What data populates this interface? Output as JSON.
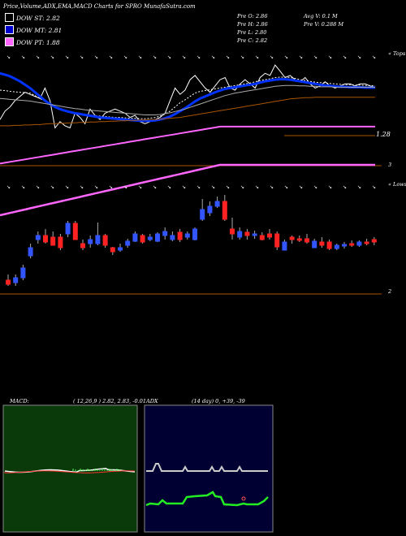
{
  "header": {
    "title": "Price,Volume,ADX,EMA,MACD Charts for SPRO MunafaSutra.com"
  },
  "legend": [
    {
      "label": "DOW ST: 2.82",
      "color": "#ffffff"
    },
    {
      "label": "DOW MT: 2.81",
      "color": "#0000cc"
    },
    {
      "label": "DOW PT: 1.88",
      "color": "#ff66ff"
    }
  ],
  "stats": {
    "open": "Pre   O: 2.86",
    "high": "Pre   H: 2.86",
    "low": "Pre   L: 2.80",
    "close": "Pre   C: 2.82",
    "avg_vol": "Avg V: 0.1   M",
    "prev_vol": "Pre   V: 0.288   M"
  },
  "ema_panel": {
    "corner_label": "« Tops",
    "price_label": "1.28",
    "axis_label": "3"
  },
  "price_panel": {
    "corner_label": "« Lows",
    "axis_label": "2"
  },
  "macd": {
    "label": "MACD:",
    "values": "( 12,26,9 ) 2.82,  2.83,  -0.01",
    "bg": "#0a3a0a"
  },
  "adx": {
    "label": "ADX",
    "values": "(14  day) 0,  +39,  -39",
    "bg": "#000033"
  },
  "chart_data": [
    {
      "type": "line",
      "name": "ema-panel",
      "x": [
        0,
        1,
        2,
        3,
        4,
        5,
        6,
        7,
        8,
        9,
        10,
        11,
        12,
        13,
        14,
        15,
        16,
        17,
        18,
        19,
        20,
        21,
        22,
        23,
        24,
        25,
        26,
        27,
        28,
        29,
        30,
        31,
        32,
        33,
        34,
        35,
        36,
        37,
        38,
        39,
        40,
        41,
        42,
        43,
        44,
        45,
        46,
        47,
        48,
        49,
        50,
        51,
        52,
        53,
        54,
        55,
        56,
        57,
        58,
        59,
        60,
        61,
        62,
        63,
        64,
        65,
        66,
        67,
        68,
        69,
        70,
        71,
        72,
        73,
        74,
        75
      ],
      "series": [
        {
          "role": "close",
          "color": "#ffffff",
          "values": [
            2.05,
            2.25,
            2.35,
            2.5,
            2.6,
            2.7,
            2.65,
            2.6,
            2.55,
            2.8,
            2.5,
            1.85,
            2.0,
            1.9,
            1.85,
            2.2,
            2.1,
            1.95,
            2.3,
            2.15,
            2.05,
            2.2,
            2.25,
            2.3,
            2.25,
            2.2,
            2.1,
            2.15,
            2.0,
            1.95,
            2.0,
            2.05,
            2.1,
            2.2,
            2.5,
            2.8,
            2.65,
            2.75,
            3.0,
            3.1,
            2.95,
            2.8,
            2.7,
            2.85,
            3.0,
            3.05,
            2.8,
            2.75,
            2.9,
            3.0,
            2.9,
            2.8,
            3.05,
            3.15,
            3.1,
            3.35,
            3.2,
            3.05,
            3.1,
            3.0,
            2.95,
            3.05,
            2.9,
            2.8,
            2.85,
            2.95,
            2.85,
            2.8,
            2.85,
            2.9,
            2.9,
            2.85,
            2.9,
            2.9,
            2.85,
            2.82
          ]
        },
        {
          "role": "ema-short",
          "color": "#ffffff",
          "values": [
            2.75,
            2.74,
            2.72,
            2.71,
            2.7,
            2.69,
            2.68,
            2.62,
            2.55,
            2.48,
            2.4,
            2.33,
            2.28,
            2.25,
            2.22,
            2.2,
            2.18,
            2.16,
            2.15,
            2.14,
            2.13,
            2.12,
            2.11,
            2.1,
            2.1,
            2.09,
            2.08,
            2.08,
            2.07,
            2.07,
            2.08,
            2.1,
            2.13,
            2.18,
            2.25,
            2.35,
            2.45,
            2.52,
            2.6,
            2.68,
            2.72,
            2.74,
            2.76,
            2.78,
            2.8,
            2.82,
            2.84,
            2.86,
            2.88,
            2.9,
            2.92,
            2.95,
            2.98,
            3.0,
            3.02,
            3.05,
            3.06,
            3.06,
            3.05,
            3.03,
            3.0,
            2.98,
            2.96,
            2.94,
            2.93,
            2.92,
            2.91,
            2.9,
            2.89,
            2.88,
            2.88,
            2.87,
            2.87,
            2.86,
            2.86,
            2.85
          ]
        },
        {
          "role": "ema-mid",
          "color": "#0033ff",
          "values": [
            3.15,
            3.12,
            3.08,
            3.02,
            2.96,
            2.88,
            2.8,
            2.7,
            2.6,
            2.5,
            2.42,
            2.35,
            2.3,
            2.26,
            2.23,
            2.2,
            2.18,
            2.16,
            2.14,
            2.12,
            2.1,
            2.09,
            2.08,
            2.07,
            2.06,
            2.05,
            2.04,
            2.03,
            2.02,
            2.02,
            2.02,
            2.03,
            2.05,
            2.08,
            2.12,
            2.18,
            2.25,
            2.32,
            2.4,
            2.48,
            2.55,
            2.6,
            2.65,
            2.7,
            2.74,
            2.78,
            2.8,
            2.82,
            2.84,
            2.86,
            2.88,
            2.9,
            2.93,
            2.96,
            2.98,
            3.0,
            3.01,
            3.01,
            3.0,
            2.98,
            2.96,
            2.94,
            2.92,
            2.9,
            2.88,
            2.86,
            2.85,
            2.84,
            2.83,
            2.83,
            2.82,
            2.82,
            2.82,
            2.81,
            2.81,
            2.81
          ]
        },
        {
          "role": "ema-long",
          "color": "#aaaaaa",
          "values": [
            2.55,
            2.54,
            2.53,
            2.52,
            2.51,
            2.5,
            2.49,
            2.47,
            2.45,
            2.43,
            2.41,
            2.39,
            2.37,
            2.35,
            2.33,
            2.31,
            2.3,
            2.28,
            2.27,
            2.26,
            2.25,
            2.24,
            2.23,
            2.22,
            2.21,
            2.2,
            2.19,
            2.18,
            2.17,
            2.16,
            2.16,
            2.16,
            2.17,
            2.19,
            2.21,
            2.24,
            2.27,
            2.3,
            2.34,
            2.38,
            2.42,
            2.46,
            2.5,
            2.54,
            2.58,
            2.62,
            2.65,
            2.68,
            2.7,
            2.72,
            2.74,
            2.76,
            2.78,
            2.8,
            2.82,
            2.84,
            2.85,
            2.86,
            2.86,
            2.86,
            2.85,
            2.85,
            2.84,
            2.84,
            2.83,
            2.83,
            2.83,
            2.82,
            2.82,
            2.82,
            2.82,
            2.82,
            2.82,
            2.82,
            2.82,
            2.82
          ]
        },
        {
          "role": "ema-vlong",
          "color": "#aa5500",
          "values": [
            1.9,
            1.9,
            1.9,
            1.91,
            1.91,
            1.92,
            1.92,
            1.93,
            1.93,
            1.94,
            1.95,
            1.95,
            1.96,
            1.96,
            1.97,
            1.97,
            1.98,
            1.98,
            1.99,
            1.99,
            2.0,
            2.0,
            2.01,
            2.01,
            2.02,
            2.02,
            2.03,
            2.03,
            2.04,
            2.04,
            2.05,
            2.05,
            2.06,
            2.07,
            2.08,
            2.09,
            2.1,
            2.12,
            2.14,
            2.16,
            2.18,
            2.2,
            2.22,
            2.24,
            2.26,
            2.28,
            2.3,
            2.32,
            2.34,
            2.36,
            2.38,
            2.4,
            2.42,
            2.44,
            2.46,
            2.48,
            2.5,
            2.52,
            2.54,
            2.55,
            2.56,
            2.57,
            2.57,
            2.58,
            2.58,
            2.58,
            2.58,
            2.58,
            2.58,
            2.58,
            2.58,
            2.58,
            2.58,
            2.58,
            2.58,
            2.58
          ]
        },
        {
          "role": "pt-line",
          "color": "#ff66ff",
          "values": [
            1.0,
            1.02,
            1.04,
            1.06,
            1.08,
            1.1,
            1.12,
            1.14,
            1.16,
            1.18,
            1.2,
            1.22,
            1.24,
            1.26,
            1.28,
            1.3,
            1.32,
            1.34,
            1.36,
            1.38,
            1.4,
            1.42,
            1.44,
            1.46,
            1.48,
            1.5,
            1.52,
            1.54,
            1.56,
            1.58,
            1.6,
            1.62,
            1.64,
            1.66,
            1.68,
            1.7,
            1.72,
            1.74,
            1.76,
            1.78,
            1.8,
            1.82,
            1.84,
            1.86,
            1.88,
            1.88,
            1.88,
            1.88,
            1.88,
            1.88,
            1.88,
            1.88,
            1.88,
            1.88,
            1.88,
            1.88,
            1.88,
            1.88,
            1.88,
            1.88,
            1.88,
            1.88,
            1.88,
            1.88,
            1.88,
            1.88,
            1.88,
            1.88,
            1.88,
            1.88,
            1.88,
            1.88,
            1.88,
            1.88,
            1.88,
            1.88
          ]
        }
      ]
    },
    {
      "type": "candlestick",
      "name": "price-panel",
      "candles": [
        {
          "o": 1.55,
          "h": 1.62,
          "l": 1.48,
          "c": 1.5
        },
        {
          "o": 1.52,
          "h": 1.62,
          "l": 1.48,
          "c": 1.58
        },
        {
          "o": 1.58,
          "h": 1.74,
          "l": 1.55,
          "c": 1.7
        },
        {
          "o": 1.85,
          "h": 2.0,
          "l": 1.82,
          "c": 1.95
        },
        {
          "o": 2.05,
          "h": 2.15,
          "l": 2.0,
          "c": 2.1
        },
        {
          "o": 2.1,
          "h": 2.18,
          "l": 2.0,
          "c": 2.02
        },
        {
          "o": 2.08,
          "h": 2.15,
          "l": 1.98,
          "c": 1.98
        },
        {
          "o": 2.08,
          "h": 2.12,
          "l": 1.92,
          "c": 1.95
        },
        {
          "o": 2.12,
          "h": 2.28,
          "l": 2.08,
          "c": 2.25
        },
        {
          "o": 2.25,
          "h": 2.28,
          "l": 2.05,
          "c": 2.05
        },
        {
          "o": 2.0,
          "h": 2.05,
          "l": 1.92,
          "c": 1.95
        },
        {
          "o": 2.0,
          "h": 2.1,
          "l": 1.95,
          "c": 2.05
        },
        {
          "o": 2.0,
          "h": 2.26,
          "l": 1.98,
          "c": 2.1
        },
        {
          "o": 2.1,
          "h": 2.12,
          "l": 1.95,
          "c": 1.98
        },
        {
          "o": 1.95,
          "h": 1.96,
          "l": 1.86,
          "c": 1.9
        },
        {
          "o": 1.92,
          "h": 2.0,
          "l": 1.9,
          "c": 1.95
        },
        {
          "o": 1.98,
          "h": 2.06,
          "l": 1.95,
          "c": 2.03
        },
        {
          "o": 2.03,
          "h": 2.15,
          "l": 2.02,
          "c": 2.12
        },
        {
          "o": 2.1,
          "h": 2.12,
          "l": 2.0,
          "c": 2.02
        },
        {
          "o": 2.05,
          "h": 2.12,
          "l": 2.03,
          "c": 2.08
        },
        {
          "o": 2.03,
          "h": 2.14,
          "l": 2.02,
          "c": 2.12
        },
        {
          "o": 2.1,
          "h": 2.2,
          "l": 2.05,
          "c": 2.15
        },
        {
          "o": 2.05,
          "h": 2.15,
          "l": 2.03,
          "c": 2.1
        },
        {
          "o": 2.14,
          "h": 2.18,
          "l": 2.02,
          "c": 2.05
        },
        {
          "o": 2.08,
          "h": 2.15,
          "l": 2.05,
          "c": 2.12
        },
        {
          "o": 2.05,
          "h": 2.2,
          "l": 2.04,
          "c": 2.18
        },
        {
          "o": 2.3,
          "h": 2.55,
          "l": 2.28,
          "c": 2.42
        },
        {
          "o": 2.38,
          "h": 2.52,
          "l": 2.34,
          "c": 2.46
        },
        {
          "o": 2.46,
          "h": 2.58,
          "l": 2.44,
          "c": 2.52
        },
        {
          "o": 2.52,
          "h": 2.6,
          "l": 2.28,
          "c": 2.3
        },
        {
          "o": 2.18,
          "h": 2.32,
          "l": 2.05,
          "c": 2.12
        },
        {
          "o": 2.08,
          "h": 2.2,
          "l": 2.05,
          "c": 2.15
        },
        {
          "o": 2.14,
          "h": 2.18,
          "l": 2.05,
          "c": 2.1
        },
        {
          "o": 2.1,
          "h": 2.16,
          "l": 2.06,
          "c": 2.12
        },
        {
          "o": 2.1,
          "h": 2.14,
          "l": 2.04,
          "c": 2.05
        },
        {
          "o": 2.12,
          "h": 2.18,
          "l": 2.05,
          "c": 2.08
        },
        {
          "o": 2.12,
          "h": 2.15,
          "l": 1.92,
          "c": 1.96
        },
        {
          "o": 1.92,
          "h": 2.05,
          "l": 1.92,
          "c": 2.02
        },
        {
          "o": 2.08,
          "h": 2.1,
          "l": 2.0,
          "c": 2.05
        },
        {
          "o": 2.06,
          "h": 2.1,
          "l": 2.02,
          "c": 2.04
        },
        {
          "o": 2.06,
          "h": 2.12,
          "l": 2.0,
          "c": 2.02
        },
        {
          "o": 1.95,
          "h": 2.06,
          "l": 1.95,
          "c": 2.03
        },
        {
          "o": 2.02,
          "h": 2.08,
          "l": 1.95,
          "c": 1.98
        },
        {
          "o": 2.02,
          "h": 2.05,
          "l": 1.92,
          "c": 1.94
        },
        {
          "o": 1.94,
          "h": 2.0,
          "l": 1.92,
          "c": 1.98
        },
        {
          "o": 1.97,
          "h": 2.02,
          "l": 1.94,
          "c": 1.99
        },
        {
          "o": 2.0,
          "h": 2.04,
          "l": 1.96,
          "c": 1.98
        },
        {
          "o": 1.98,
          "h": 2.04,
          "l": 1.96,
          "c": 2.02
        },
        {
          "o": 2.02,
          "h": 2.06,
          "l": 1.98,
          "c": 2.0
        },
        {
          "o": 2.05,
          "h": 2.08,
          "l": 1.98,
          "c": 2.02
        }
      ]
    }
  ]
}
